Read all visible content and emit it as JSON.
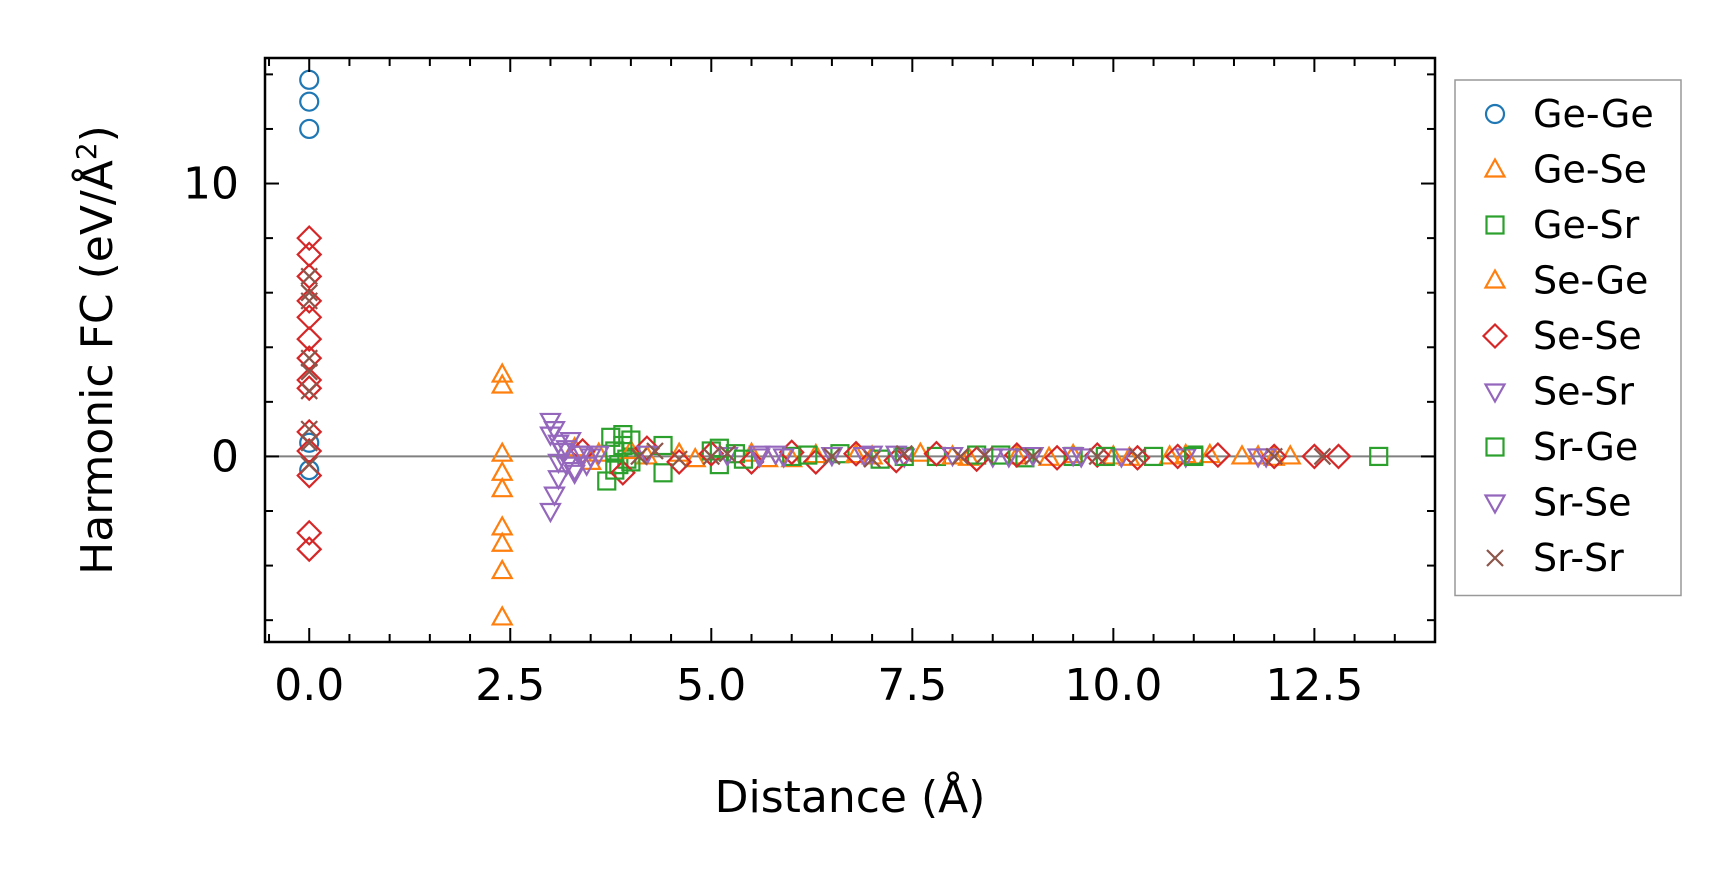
{
  "chart_data": {
    "type": "scatter",
    "title": "",
    "xlabel": "Distance (Å)",
    "ylabel_prefix": "Harmonic FC (eV/Å",
    "ylabel_sup": "2",
    "ylabel_suffix": ")",
    "xlim": [
      -0.55,
      14.0
    ],
    "ylim": [
      -6.8,
      14.6
    ],
    "xticks": [
      0,
      2.5,
      5,
      7.5,
      10,
      12.5
    ],
    "xtick_labels": [
      "0.0",
      "2.5",
      "5.0",
      "7.5",
      "10.0",
      "12.5"
    ],
    "yticks": [
      0,
      10
    ],
    "ytick_labels": [
      "0",
      "10"
    ],
    "x_minor_step": 0.5,
    "y_minor_step": 2,
    "zero_line": true,
    "legend_position": "outside-right",
    "series": [
      {
        "name": "Ge-Ge",
        "marker": "circle",
        "color": "#1f77b4",
        "points": [
          [
            0,
            13.8
          ],
          [
            0,
            13.0
          ],
          [
            0,
            12.0
          ],
          [
            0,
            0.5
          ],
          [
            0,
            -0.5
          ]
        ]
      },
      {
        "name": "Ge-Se",
        "marker": "triangle-up",
        "color": "#ff7f0e",
        "points": [
          [
            2.4,
            3.0
          ],
          [
            2.4,
            2.6
          ],
          [
            2.4,
            0.1
          ],
          [
            2.4,
            -0.6
          ],
          [
            2.4,
            -1.2
          ],
          [
            2.4,
            -2.6
          ],
          [
            2.4,
            -3.2
          ],
          [
            2.4,
            -4.2
          ],
          [
            2.4,
            -5.9
          ],
          [
            3.6,
            0.1
          ],
          [
            4.2,
            0.0
          ],
          [
            4.8,
            -0.1
          ],
          [
            5.5,
            0.1
          ],
          [
            6.0,
            -0.1
          ],
          [
            6.3,
            0.05
          ],
          [
            7.0,
            0.0
          ],
          [
            7.6,
            0.1
          ],
          [
            8.2,
            -0.05
          ],
          [
            8.8,
            0.0
          ],
          [
            9.5,
            0.05
          ],
          [
            10.2,
            -0.05
          ],
          [
            10.7,
            0.0
          ],
          [
            11.2,
            0.05
          ],
          [
            11.8,
            0.0
          ],
          [
            12.2,
            0.0
          ]
        ]
      },
      {
        "name": "Ge-Sr",
        "marker": "square",
        "color": "#2ca02c",
        "points": [
          [
            3.7,
            -0.9
          ],
          [
            3.75,
            0.7
          ],
          [
            3.8,
            0.2
          ],
          [
            3.85,
            -0.3
          ],
          [
            3.9,
            0.4
          ],
          [
            3.95,
            -0.1
          ],
          [
            4.0,
            0.6
          ],
          [
            4.4,
            0.4
          ],
          [
            4.4,
            -0.6
          ],
          [
            5.0,
            0.2
          ],
          [
            5.1,
            -0.3
          ],
          [
            5.3,
            0.1
          ],
          [
            6.0,
            0.0
          ],
          [
            6.6,
            0.1
          ],
          [
            7.1,
            -0.1
          ],
          [
            7.8,
            0.0
          ],
          [
            8.3,
            0.05
          ],
          [
            8.9,
            -0.05
          ],
          [
            9.5,
            0.0
          ],
          [
            10.5,
            0.0
          ],
          [
            11.0,
            0.05
          ],
          [
            13.3,
            0.0
          ]
        ]
      },
      {
        "name": "Se-Ge",
        "marker": "triangle-up",
        "color": "#ff7f0e",
        "points": [
          [
            3.3,
            0.3
          ],
          [
            3.5,
            -0.2
          ],
          [
            4.0,
            0.2
          ],
          [
            4.6,
            0.1
          ],
          [
            5.7,
            -0.1
          ],
          [
            6.8,
            0.05
          ],
          [
            8.0,
            0.0
          ],
          [
            9.2,
            -0.05
          ],
          [
            10.0,
            0.0
          ],
          [
            10.9,
            0.05
          ],
          [
            11.6,
            0.0
          ],
          [
            12.0,
            -0.05
          ]
        ]
      },
      {
        "name": "Se-Se",
        "marker": "diamond",
        "color": "#d62728",
        "points": [
          [
            0,
            8.0
          ],
          [
            0,
            7.4
          ],
          [
            0,
            6.6
          ],
          [
            0,
            5.7
          ],
          [
            0,
            5.1
          ],
          [
            0,
            4.3
          ],
          [
            0,
            3.6
          ],
          [
            0,
            2.8
          ],
          [
            0,
            2.5
          ],
          [
            0,
            0.9
          ],
          [
            0,
            0.2
          ],
          [
            0,
            -0.7
          ],
          [
            0,
            -2.8
          ],
          [
            0,
            -3.4
          ],
          [
            3.4,
            0.2
          ],
          [
            3.9,
            -0.6
          ],
          [
            4.2,
            0.3
          ],
          [
            4.6,
            -0.2
          ],
          [
            5.0,
            0.1
          ],
          [
            5.5,
            -0.2
          ],
          [
            6.0,
            0.15
          ],
          [
            6.3,
            -0.2
          ],
          [
            6.8,
            0.1
          ],
          [
            7.3,
            -0.15
          ],
          [
            7.8,
            0.1
          ],
          [
            8.3,
            -0.1
          ],
          [
            8.8,
            0.05
          ],
          [
            9.3,
            -0.05
          ],
          [
            9.8,
            0.05
          ],
          [
            10.3,
            -0.05
          ],
          [
            10.8,
            0.0
          ],
          [
            11.3,
            0.05
          ],
          [
            12.0,
            0.0
          ],
          [
            12.5,
            0.0
          ],
          [
            12.8,
            0.0
          ]
        ]
      },
      {
        "name": "Se-Sr",
        "marker": "triangle-down",
        "color": "#9467bd",
        "points": [
          [
            3.0,
            1.3
          ],
          [
            3.05,
            1.0
          ],
          [
            3.1,
            0.5
          ],
          [
            3.15,
            0.2
          ],
          [
            3.2,
            -0.3
          ],
          [
            3.1,
            -0.8
          ],
          [
            3.05,
            -1.4
          ],
          [
            3.0,
            -2.0
          ],
          [
            3.25,
            0.6
          ],
          [
            3.3,
            -0.5
          ],
          [
            3.4,
            0.1
          ],
          [
            3.5,
            0.0
          ],
          [
            4.2,
            0.1
          ],
          [
            5.2,
            0.05
          ],
          [
            5.6,
            0.1
          ],
          [
            5.9,
            0.0
          ],
          [
            6.5,
            0.05
          ],
          [
            7.0,
            0.1
          ],
          [
            7.4,
            0.0
          ],
          [
            8.0,
            0.05
          ],
          [
            8.5,
            0.0
          ],
          [
            9.0,
            0.05
          ],
          [
            9.6,
            0.0
          ],
          [
            10.1,
            0.0
          ],
          [
            10.9,
            0.0
          ],
          [
            11.8,
            0.0
          ]
        ]
      },
      {
        "name": "Sr-Ge",
        "marker": "square",
        "color": "#2ca02c",
        "points": [
          [
            3.8,
            -0.5
          ],
          [
            3.9,
            0.8
          ],
          [
            4.0,
            -0.2
          ],
          [
            5.1,
            0.3
          ],
          [
            5.4,
            -0.1
          ],
          [
            6.2,
            0.05
          ],
          [
            7.4,
            0.0
          ],
          [
            8.6,
            0.05
          ],
          [
            9.9,
            0.0
          ],
          [
            11.0,
            0.0
          ]
        ]
      },
      {
        "name": "Sr-Se",
        "marker": "triangle-down",
        "color": "#9467bd",
        "points": [
          [
            3.0,
            0.8
          ],
          [
            3.1,
            -0.2
          ],
          [
            3.2,
            0.3
          ],
          [
            3.3,
            -0.6
          ],
          [
            3.35,
            0.1
          ],
          [
            3.45,
            -0.3
          ],
          [
            3.6,
            0.1
          ],
          [
            5.6,
            0.0
          ],
          [
            5.8,
            0.1
          ],
          [
            6.9,
            0.05
          ],
          [
            7.3,
            0.1
          ],
          [
            8.7,
            0.0
          ],
          [
            9.5,
            0.05
          ],
          [
            11.9,
            0.0
          ]
        ]
      },
      {
        "name": "Sr-Sr",
        "marker": "x",
        "color": "#8c564b",
        "points": [
          [
            0,
            6.6
          ],
          [
            0,
            6.0
          ],
          [
            0,
            5.7
          ],
          [
            0,
            3.6
          ],
          [
            0,
            3.1
          ],
          [
            0,
            2.4
          ],
          [
            0,
            1.0
          ],
          [
            0,
            0.5
          ],
          [
            0,
            -0.3
          ],
          [
            4.1,
            0.0
          ],
          [
            4.3,
            0.2
          ],
          [
            4.6,
            -0.1
          ],
          [
            5.0,
            0.0
          ],
          [
            5.2,
            0.1
          ],
          [
            6.5,
            0.0
          ],
          [
            7.0,
            -0.1
          ],
          [
            7.4,
            0.1
          ],
          [
            8.1,
            0.0
          ],
          [
            8.4,
            0.05
          ],
          [
            9.0,
            0.0
          ],
          [
            9.8,
            0.0
          ],
          [
            10.3,
            0.0
          ],
          [
            12.0,
            0.0
          ],
          [
            12.6,
            0.0
          ]
        ]
      }
    ]
  }
}
